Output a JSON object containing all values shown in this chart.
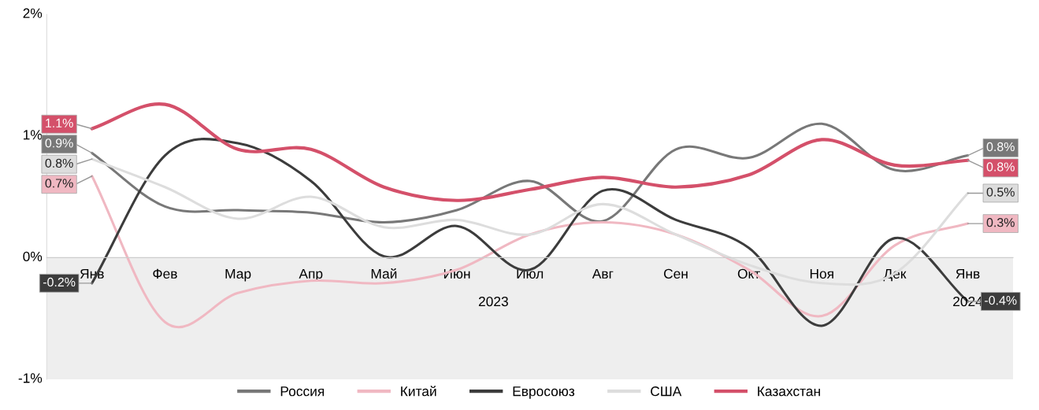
{
  "chart_data": {
    "type": "line",
    "categories": [
      "Янв",
      "Фев",
      "Мар",
      "Апр",
      "Май",
      "Июн",
      "Июл",
      "Авг",
      "Сен",
      "Окт",
      "Ноя",
      "Дек",
      "Янв"
    ],
    "series": [
      {
        "name": "Россия",
        "color": "#787878",
        "values": [
          0.86,
          0.42,
          0.39,
          0.37,
          0.29,
          0.39,
          0.63,
          0.3,
          0.89,
          0.82,
          1.1,
          0.72,
          0.84
        ],
        "value_labels": [
          "0.9%",
          null,
          null,
          null,
          null,
          null,
          null,
          null,
          null,
          null,
          null,
          null,
          "0.8%"
        ]
      },
      {
        "name": "Китай",
        "color": "#f0b8c2",
        "values": [
          0.67,
          -0.53,
          -0.29,
          -0.19,
          -0.21,
          -0.1,
          0.19,
          0.29,
          0.19,
          -0.1,
          -0.48,
          0.1,
          0.28
        ],
        "value_labels": [
          "0.7%",
          null,
          null,
          null,
          null,
          null,
          null,
          null,
          null,
          null,
          null,
          null,
          "0.3%"
        ]
      },
      {
        "name": "Евросоюз",
        "color": "#3c3c3c",
        "values": [
          -0.21,
          0.84,
          0.94,
          0.63,
          0.01,
          0.26,
          -0.1,
          0.55,
          0.31,
          0.08,
          -0.56,
          0.16,
          -0.36
        ],
        "value_labels": [
          "-0.2%",
          null,
          null,
          null,
          null,
          null,
          null,
          null,
          null,
          null,
          null,
          null,
          "-0.4%"
        ]
      },
      {
        "name": "США",
        "color": "#dddddd",
        "values": [
          0.81,
          0.58,
          0.32,
          0.5,
          0.25,
          0.31,
          0.19,
          0.44,
          0.19,
          -0.06,
          -0.21,
          -0.13,
          0.53
        ],
        "value_labels": [
          "0.8%",
          null,
          null,
          null,
          null,
          null,
          null,
          null,
          null,
          null,
          null,
          null,
          "0.5%"
        ]
      },
      {
        "name": "Казахстан",
        "color": "#d4506a",
        "values": [
          1.06,
          1.26,
          0.89,
          0.89,
          0.58,
          0.47,
          0.56,
          0.66,
          0.58,
          0.68,
          0.97,
          0.76,
          0.8
        ],
        "value_labels": [
          "1.1%",
          null,
          null,
          null,
          null,
          null,
          null,
          null,
          null,
          null,
          null,
          null,
          "0.8%"
        ]
      }
    ],
    "ylim": [
      -1,
      2
    ],
    "yticks": [
      {
        "value": 2,
        "label": "2%"
      },
      {
        "value": 1,
        "label": "1%"
      },
      {
        "value": 0,
        "label": "0%"
      },
      {
        "value": -1,
        "label": "-1%"
      }
    ],
    "bands": [
      {
        "axis": "y",
        "from": -1,
        "to": 0,
        "color": "#eeeeee"
      }
    ],
    "annotations": [
      "2023",
      "2024"
    ],
    "grid": false,
    "legend": "bottom",
    "marker": "none",
    "line_style": "solid"
  }
}
